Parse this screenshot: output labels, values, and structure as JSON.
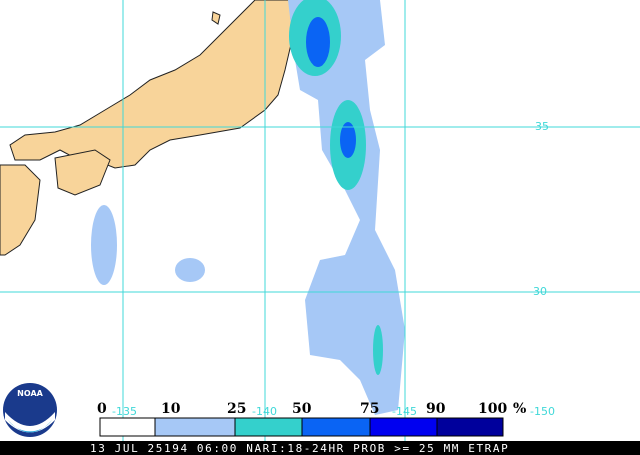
{
  "map": {
    "lat_labels": [
      "35",
      "30"
    ],
    "lon_labels": [
      "-135",
      "-140",
      "-145",
      "-150"
    ],
    "legend": {
      "labels": [
        "0",
        "10",
        "25",
        "50",
        "75",
        "90",
        "100"
      ],
      "unit": "%",
      "colors": [
        "#ffffff",
        "#a6c8f6",
        "#34d0cc",
        "#0a64f4",
        "#0000f0",
        "#00009c"
      ]
    },
    "logo": "NOAA",
    "caption": "13 JUL 25194 06:00 NARI:18-24HR PROB >= 25 MM ETRAP"
  }
}
